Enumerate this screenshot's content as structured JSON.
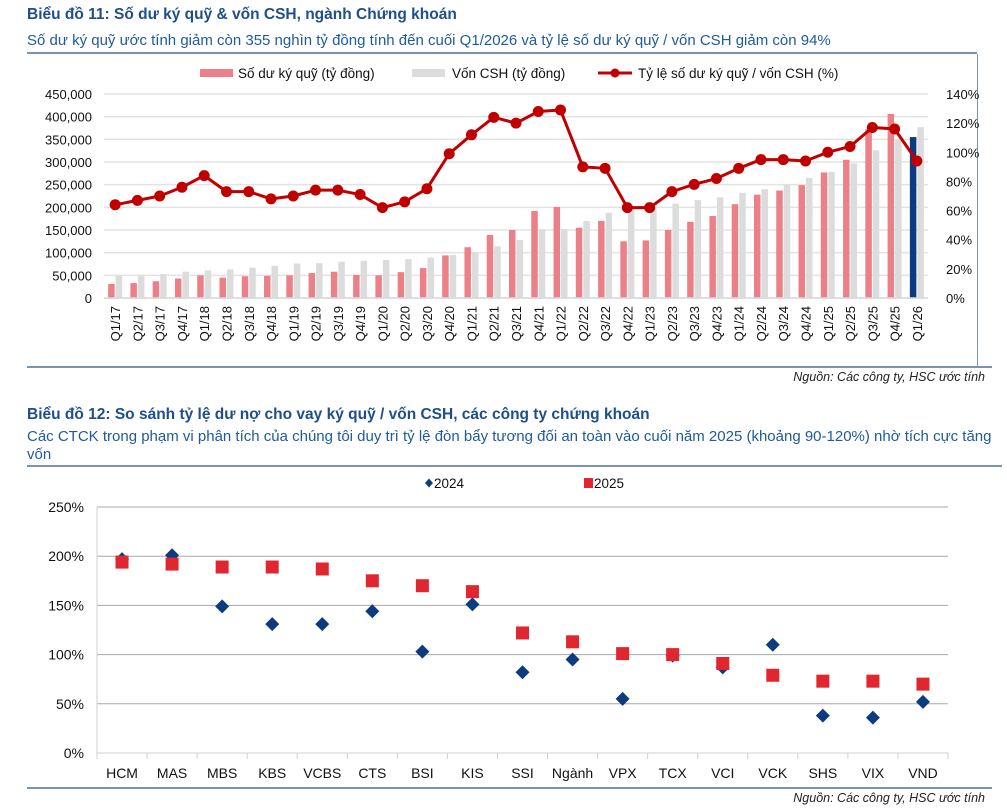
{
  "chart_data": [
    {
      "type": "bar",
      "title": "Biểu đồ 11: Số dư ký quỹ & vốn CSH, ngành Chứng khoán",
      "subtitle": "Số dư ký quỹ ước tính giảm còn 355 nghìn tỷ đồng tính đến cuối Q1/2026 và tỷ lệ số dư ký quỹ / vốn CSH giảm còn 94%",
      "source": "Nguồn: Các công ty, HSC ước tính",
      "legend_position": "top",
      "grid": true,
      "categories": [
        "Q1/17",
        "Q2/17",
        "Q3/17",
        "Q4/17",
        "Q1/18",
        "Q2/18",
        "Q3/18",
        "Q4/18",
        "Q1/19",
        "Q2/19",
        "Q3/19",
        "Q4/19",
        "Q1/20",
        "Q2/20",
        "Q3/20",
        "Q4/20",
        "Q1/21",
        "Q2/21",
        "Q3/21",
        "Q4/21",
        "Q1/22",
        "Q2/22",
        "Q3/22",
        "Q4/22",
        "Q1/23",
        "Q2/23",
        "Q3/23",
        "Q4/23",
        "Q1/24",
        "Q2/24",
        "Q3/24",
        "Q4/24",
        "Q1/25",
        "Q2/25",
        "Q3/25",
        "Q4/25",
        "Q1/26"
      ],
      "series": [
        {
          "name": "Số dư ký quỹ (tỷ đồng)",
          "type": "bar",
          "axis": "left",
          "color": "#ec8088",
          "highlight_last_color": "#0d3b80",
          "values": [
            31000,
            33000,
            37000,
            43000,
            50000,
            45000,
            48000,
            49000,
            50000,
            55000,
            58000,
            51000,
            50000,
            57000,
            66000,
            94000,
            112000,
            139000,
            150000,
            192000,
            201000,
            155000,
            170000,
            125000,
            127000,
            150000,
            168000,
            181000,
            207000,
            228000,
            237000,
            249000,
            277000,
            305000,
            372000,
            406000,
            355000
          ]
        },
        {
          "name": "Vốn CSH (tỷ đồng)",
          "type": "bar",
          "axis": "left",
          "color": "#dcdcdc",
          "values": [
            50000,
            50000,
            53000,
            58000,
            61000,
            63000,
            67000,
            71000,
            76000,
            77000,
            80000,
            82000,
            84000,
            86000,
            89000,
            95000,
            100000,
            114000,
            128000,
            152000,
            152000,
            170000,
            188000,
            200000,
            202000,
            208000,
            216000,
            222000,
            232000,
            240000,
            250000,
            265000,
            278000,
            297000,
            326000,
            349000,
            377000
          ]
        },
        {
          "name": "Tỷ lệ số dư ký quỹ / vốn CSH (%)",
          "type": "line",
          "axis": "right",
          "color": "#c00000",
          "values": [
            64,
            67,
            70,
            76,
            84,
            73,
            73,
            68,
            70,
            74,
            74,
            71,
            62,
            66,
            75,
            99,
            112,
            124,
            120,
            128,
            129,
            90,
            89,
            62,
            62,
            73,
            78,
            82,
            89,
            95,
            95,
            94,
            100,
            104,
            117,
            116,
            94
          ]
        }
      ],
      "y_left": {
        "min": 0,
        "max": 450000,
        "step": 50000,
        "ticks": [
          "0",
          "50,000",
          "100,000",
          "150,000",
          "200,000",
          "250,000",
          "300,000",
          "350,000",
          "400,000",
          "450,000"
        ]
      },
      "y_right": {
        "min": 0,
        "max": 140,
        "step": 20,
        "ticks": [
          "0%",
          "20%",
          "40%",
          "60%",
          "80%",
          "100%",
          "120%",
          "140%"
        ]
      }
    },
    {
      "type": "scatter",
      "title": "Biểu đồ 12: So sánh tỷ lệ dư nợ cho vay ký quỹ / vốn CSH, các công ty chứng khoán",
      "subtitle": "Các CTCK trong phạm vi phân tích của chúng tôi duy trì tỷ lệ đòn bẩy tương đối an toàn vào cuối năm 2025 (khoảng 90-120%) nhờ tích cực tăng vốn",
      "source": "Nguồn: Các công ty, HSC ước tính",
      "legend_position": "top",
      "grid": true,
      "categories": [
        "HCM",
        "MAS",
        "MBS",
        "KBS",
        "VCBS",
        "CTS",
        "BSI",
        "KIS",
        "SSI",
        "Ngành",
        "VPX",
        "TCX",
        "VCI",
        "VCK",
        "SHS",
        "VIX",
        "VND"
      ],
      "series": [
        {
          "name": "2024",
          "marker": "diamond",
          "color": "#0d3b80",
          "values": [
            197,
            201,
            149,
            131,
            131,
            144,
            103,
            151,
            82,
            95,
            55,
            99,
            87,
            110,
            38,
            36,
            52
          ]
        },
        {
          "name": "2025",
          "marker": "square",
          "color": "#e0262e",
          "values": [
            194,
            192,
            189,
            189,
            187,
            175,
            170,
            164,
            122,
            113,
            101,
            100,
            91,
            79,
            73,
            73,
            70
          ]
        }
      ],
      "y": {
        "min": 0,
        "max": 250,
        "step": 50,
        "ticks": [
          "0%",
          "50%",
          "100%",
          "150%",
          "200%",
          "250%"
        ]
      }
    }
  ]
}
